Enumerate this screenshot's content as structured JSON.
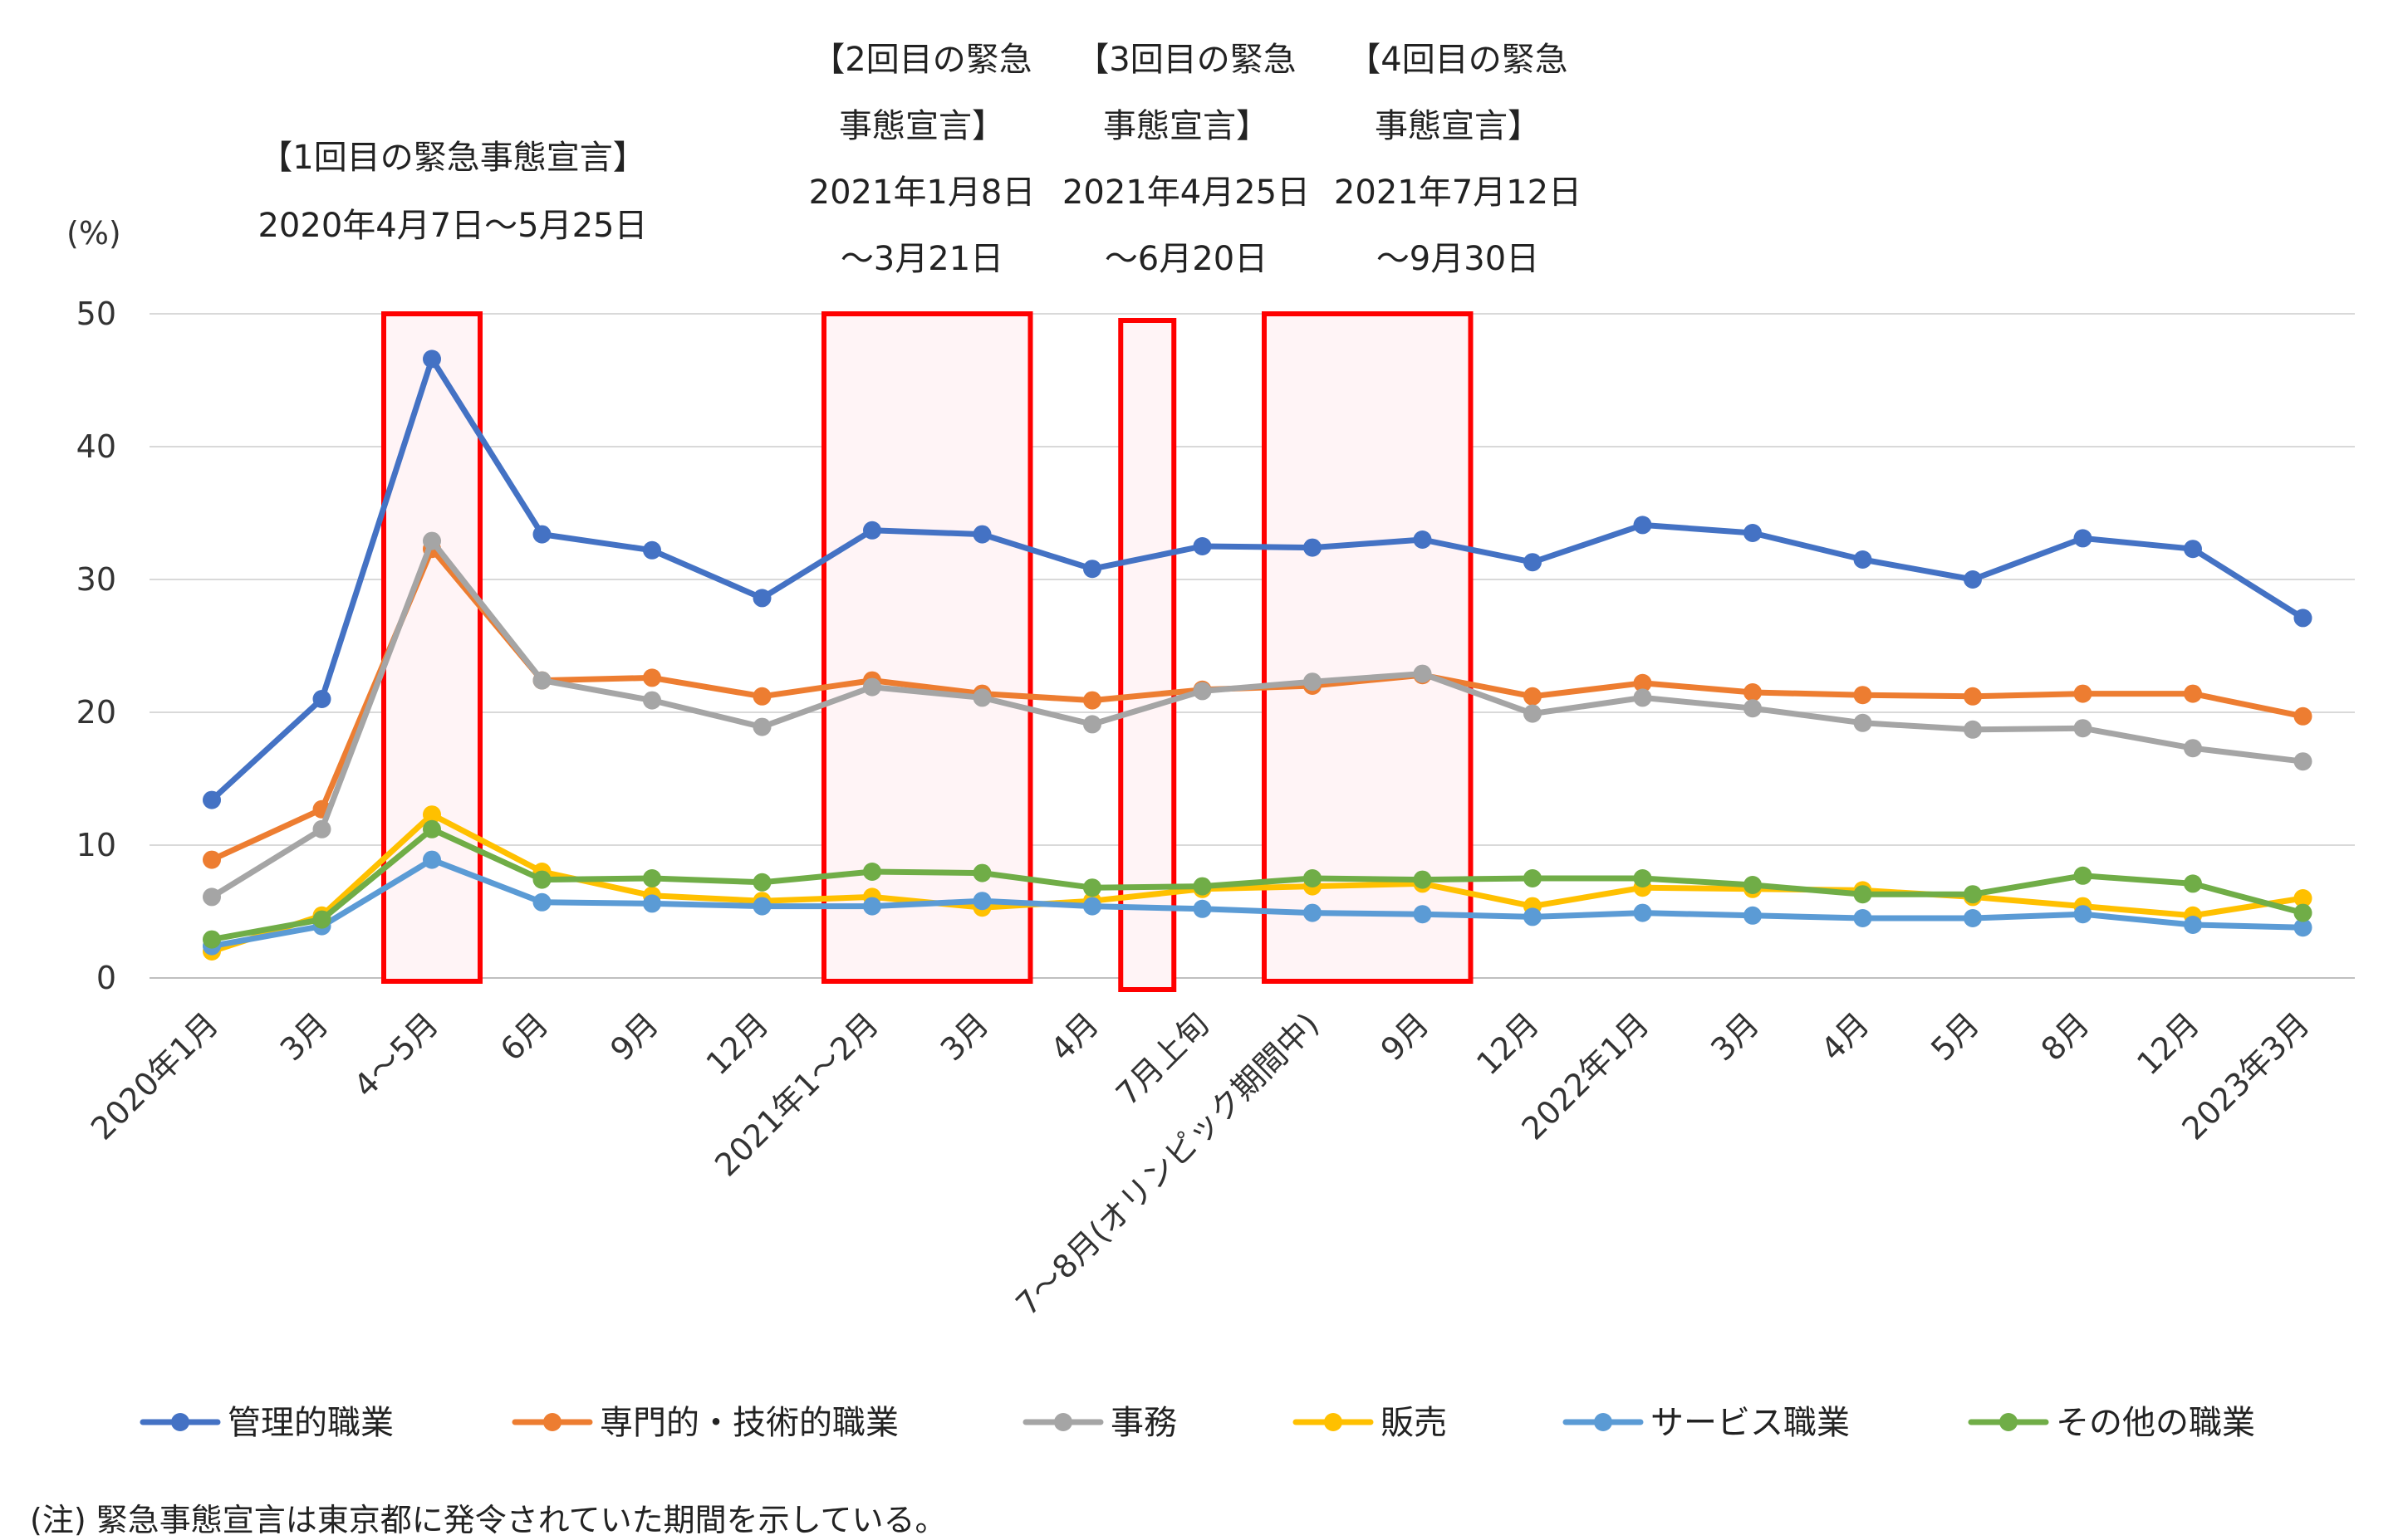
{
  "chart_data": {
    "type": "line",
    "y_unit": "(%)",
    "ylim": [
      0,
      50
    ],
    "yticks": [
      0,
      10,
      20,
      30,
      40,
      50
    ],
    "grid": true,
    "legend_position": "bottom",
    "categories": [
      "2020年1月",
      "3月",
      "4～5月",
      "6月",
      "9月",
      "12月",
      "2021年1～2月",
      "3月",
      "4月",
      "7月上旬",
      "7～8月(オリンピック期間中)",
      "9月",
      "12月",
      "2022年1月",
      "3月",
      "4月",
      "5月",
      "8月",
      "12月",
      "2023年3月"
    ],
    "series": [
      {
        "name": "管理的職業",
        "color": "#4472C4",
        "values": [
          13.4,
          21.0,
          46.6,
          33.4,
          32.2,
          28.6,
          33.7,
          33.4,
          30.8,
          32.5,
          32.4,
          33.0,
          31.3,
          34.1,
          33.5,
          31.5,
          30.0,
          33.1,
          32.3,
          27.1
        ]
      },
      {
        "name": "専門的・技術的職業",
        "color": "#ED7D31",
        "values": [
          8.9,
          12.7,
          32.3,
          22.4,
          22.6,
          21.2,
          22.4,
          21.4,
          20.9,
          21.7,
          22.0,
          22.8,
          21.2,
          22.2,
          21.5,
          21.3,
          21.2,
          21.4,
          21.4,
          19.7
        ]
      },
      {
        "name": "事務",
        "color": "#A5A5A5",
        "values": [
          6.1,
          11.2,
          32.9,
          22.4,
          20.9,
          18.9,
          21.9,
          21.1,
          19.1,
          21.6,
          22.3,
          22.9,
          19.9,
          21.1,
          20.3,
          19.2,
          18.7,
          18.8,
          17.3,
          16.3
        ]
      },
      {
        "name": "販売",
        "color": "#FFC000",
        "values": [
          2.0,
          4.7,
          12.3,
          8.0,
          6.2,
          5.8,
          6.1,
          5.3,
          5.8,
          6.7,
          6.9,
          7.1,
          5.4,
          6.8,
          6.7,
          6.6,
          6.1,
          5.4,
          4.7,
          6.0
        ]
      },
      {
        "name": "サービス職業",
        "color": "#5B9BD5",
        "values": [
          2.4,
          3.9,
          8.9,
          5.7,
          5.6,
          5.4,
          5.4,
          5.8,
          5.4,
          5.2,
          4.9,
          4.8,
          4.6,
          4.9,
          4.7,
          4.5,
          4.5,
          4.8,
          4.0,
          3.8
        ]
      },
      {
        "name": "その他の職業",
        "color": "#70AD47",
        "values": [
          2.9,
          4.4,
          11.2,
          7.4,
          7.5,
          7.2,
          8.0,
          7.9,
          6.8,
          6.9,
          7.5,
          7.4,
          7.5,
          7.5,
          7.0,
          6.3,
          6.3,
          7.7,
          7.1,
          4.9
        ]
      }
    ],
    "highlight_color": "#FF0000",
    "highlight_fill": "#FFF4F6",
    "emergency_periods": [
      {
        "from": 2,
        "to": 2,
        "label_lines": [
          "【1回目の緊急事態宣言】",
          "2020年4月7日～5月25日"
        ]
      },
      {
        "from": 6,
        "to": 7,
        "label_lines": [
          "【2回目の緊急",
          "事態宣言】",
          "2021年1月8日",
          "～3月21日"
        ]
      },
      {
        "from": 8.5,
        "to": 8.5,
        "label_lines": [
          "【3回目の緊急",
          "事態宣言】",
          "2021年4月25日",
          "～6月20日"
        ]
      },
      {
        "from": 10,
        "to": 11,
        "label_lines": [
          "【4回目の緊急",
          "事態宣言】",
          "2021年7月12日",
          "～9月30日"
        ]
      }
    ]
  },
  "note": "(注) 緊急事態宣言は東京都に発令されていた期間を示している。"
}
